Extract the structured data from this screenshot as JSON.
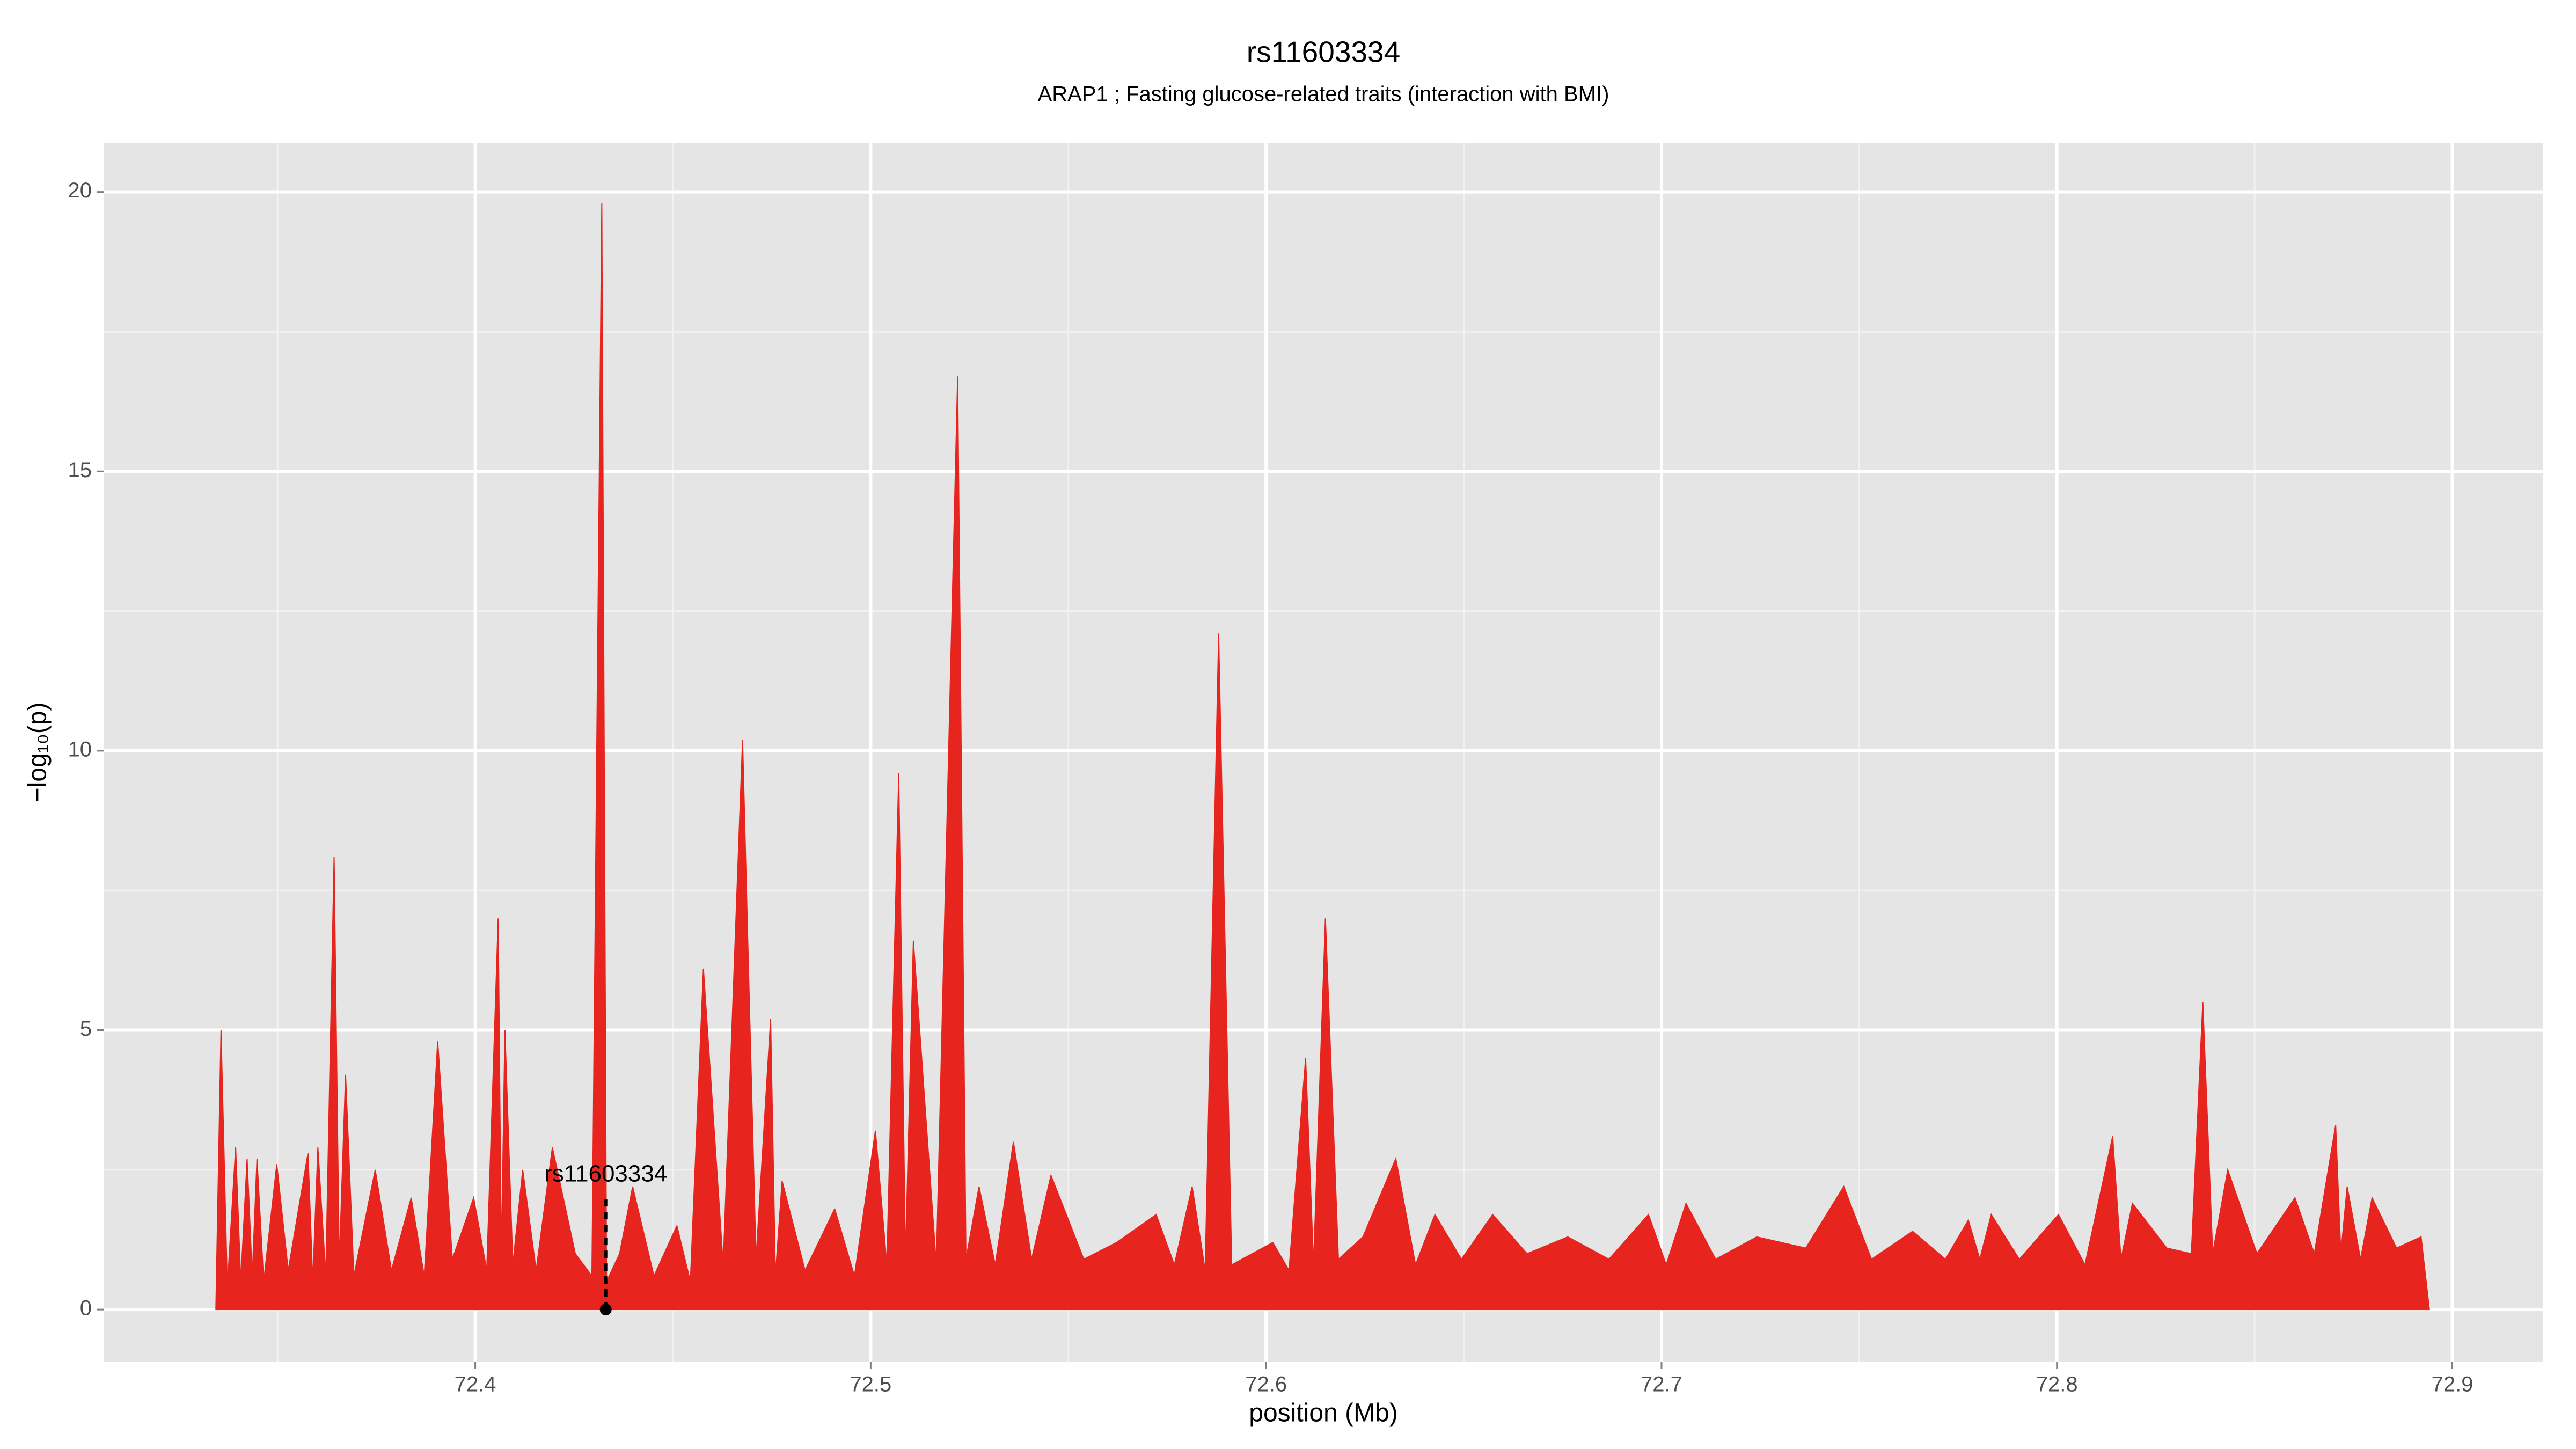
{
  "chart_data": {
    "type": "area",
    "title": "rs11603334",
    "subtitle": "ARAP1 ; Fasting glucose-related traits (interaction with BMI)",
    "xlabel": "position (Mb)",
    "ylabel": "−log₁₀(p)",
    "color": "#e8241e",
    "x": [
      72.3344,
      72.3357,
      72.3373,
      72.3394,
      72.3407,
      72.3423,
      72.3436,
      72.3448,
      72.3465,
      72.3498,
      72.3527,
      72.3577,
      72.3589,
      72.3602,
      72.3622,
      72.3643,
      72.3656,
      72.3672,
      72.3693,
      72.3747,
      72.3788,
      72.3838,
      72.3871,
      72.3905,
      72.3942,
      72.3996,
      72.4029,
      72.4058,
      72.4066,
      72.4075,
      72.4095,
      72.412,
      72.4154,
      72.4195,
      72.4253,
      72.4295,
      72.432,
      72.4332,
      72.4365,
      72.4398,
      72.4452,
      72.451,
      72.4544,
      72.4577,
      72.4627,
      72.4676,
      72.471,
      72.4747,
      72.4759,
      72.4776,
      72.4834,
      72.4909,
      72.4959,
      72.5012,
      72.5041,
      72.5071,
      72.5088,
      72.5108,
      72.5166,
      72.522,
      72.5241,
      72.5274,
      72.5315,
      72.5361,
      72.5407,
      72.5456,
      72.5539,
      72.5622,
      72.5722,
      72.5768,
      72.5813,
      72.5846,
      72.588,
      72.5913,
      72.6017,
      72.6058,
      72.61,
      72.612,
      72.615,
      72.6183,
      72.6245,
      72.6328,
      72.6378,
      72.6427,
      72.6494,
      72.6573,
      72.666,
      72.6763,
      72.6867,
      72.6967,
      72.7012,
      72.7062,
      72.7137,
      72.7241,
      72.7365,
      72.7461,
      72.7531,
      72.7635,
      72.7718,
      72.7776,
      72.7805,
      72.7834,
      72.7905,
      72.8004,
      72.8071,
      72.8141,
      72.8162,
      72.8191,
      72.8278,
      72.834,
      72.8369,
      72.8394,
      72.8432,
      72.8506,
      72.8602,
      72.8651,
      72.8705,
      72.8718,
      72.8734,
      72.8768,
      72.8797,
      72.8859,
      72.8921,
      72.8942
    ],
    "values": [
      0,
      5.0,
      0.4,
      2.9,
      0.5,
      2.7,
      0.6,
      2.7,
      0.5,
      2.6,
      0.7,
      2.8,
      0.5,
      2.9,
      0.6,
      8.1,
      0.8,
      4.2,
      0.6,
      2.5,
      0.7,
      2.0,
      0.6,
      4.8,
      0.9,
      2.0,
      0.7,
      7.0,
      0.9,
      5.0,
      0.8,
      2.5,
      0.7,
      2.9,
      1.0,
      0.6,
      19.8,
      0.5,
      1.0,
      2.2,
      0.6,
      1.5,
      0.5,
      6.1,
      0.8,
      10.2,
      0.9,
      5.2,
      0.6,
      2.3,
      0.7,
      1.8,
      0.6,
      3.2,
      0.8,
      9.6,
      0.9,
      6.6,
      0.8,
      16.7,
      0.9,
      2.2,
      0.8,
      3.0,
      0.9,
      2.4,
      0.9,
      1.2,
      1.7,
      0.8,
      2.2,
      0.7,
      12.1,
      0.8,
      1.2,
      0.7,
      4.5,
      0.8,
      7.0,
      0.9,
      1.3,
      2.7,
      0.8,
      1.7,
      0.9,
      1.7,
      1.0,
      1.3,
      0.9,
      1.7,
      0.8,
      1.9,
      0.9,
      1.3,
      1.1,
      2.2,
      0.9,
      1.4,
      0.9,
      1.6,
      0.9,
      1.7,
      0.9,
      1.7,
      0.8,
      3.1,
      0.9,
      1.9,
      1.1,
      1.0,
      5.5,
      1.0,
      2.5,
      1.0,
      2.0,
      1.0,
      3.3,
      1.0,
      2.2,
      0.9,
      2.0,
      1.1,
      1.3,
      0
    ],
    "annotation": {
      "text": "rs11603334",
      "x": 72.433,
      "y": 0
    },
    "xlim": [
      72.306,
      72.923
    ],
    "ylim": [
      -0.94,
      20.88
    ],
    "xticks": [
      72.4,
      72.5,
      72.6,
      72.7,
      72.8,
      72.9
    ],
    "yticks": [
      0,
      5,
      10,
      15,
      20
    ],
    "grid": true
  }
}
